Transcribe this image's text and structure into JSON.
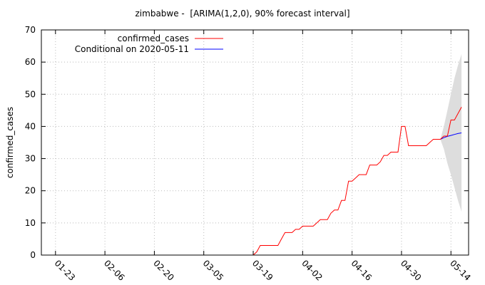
{
  "chart_data": {
    "type": "line",
    "title": "zimbabwe -  [ARIMA(1,2,0), 90% forecast interval]",
    "xlabel": "",
    "ylabel": "confirmed_cases",
    "xlim": [
      "2020-01-19",
      "2020-05-19"
    ],
    "ylim": [
      0,
      70
    ],
    "yticks": [
      0,
      10,
      20,
      30,
      40,
      50,
      60,
      70
    ],
    "xticks": [
      "01-23",
      "02-06",
      "02-20",
      "03-05",
      "03-19",
      "04-02",
      "04-16",
      "04-30",
      "05-14"
    ],
    "xtick_dates": [
      "2020-01-23",
      "2020-02-06",
      "2020-02-20",
      "2020-03-05",
      "2020-03-19",
      "2020-04-02",
      "2020-04-16",
      "2020-04-30",
      "2020-05-14"
    ],
    "grid": true,
    "legend_position": "top-left",
    "series": [
      {
        "name": "confirmed_cases",
        "color": "#ff0000",
        "points": [
          [
            "2020-03-19",
            0
          ],
          [
            "2020-03-20",
            1
          ],
          [
            "2020-03-21",
            3
          ],
          [
            "2020-03-22",
            3
          ],
          [
            "2020-03-23",
            3
          ],
          [
            "2020-03-24",
            3
          ],
          [
            "2020-03-25",
            3
          ],
          [
            "2020-03-26",
            3
          ],
          [
            "2020-03-27",
            5
          ],
          [
            "2020-03-28",
            7
          ],
          [
            "2020-03-29",
            7
          ],
          [
            "2020-03-30",
            7
          ],
          [
            "2020-03-31",
            8
          ],
          [
            "2020-04-01",
            8
          ],
          [
            "2020-04-02",
            9
          ],
          [
            "2020-04-03",
            9
          ],
          [
            "2020-04-04",
            9
          ],
          [
            "2020-04-05",
            9
          ],
          [
            "2020-04-06",
            10
          ],
          [
            "2020-04-07",
            11
          ],
          [
            "2020-04-08",
            11
          ],
          [
            "2020-04-09",
            11
          ],
          [
            "2020-04-10",
            13
          ],
          [
            "2020-04-11",
            14
          ],
          [
            "2020-04-12",
            14
          ],
          [
            "2020-04-13",
            17
          ],
          [
            "2020-04-14",
            17
          ],
          [
            "2020-04-15",
            23
          ],
          [
            "2020-04-16",
            23
          ],
          [
            "2020-04-17",
            24
          ],
          [
            "2020-04-18",
            25
          ],
          [
            "2020-04-19",
            25
          ],
          [
            "2020-04-20",
            25
          ],
          [
            "2020-04-21",
            28
          ],
          [
            "2020-04-22",
            28
          ],
          [
            "2020-04-23",
            28
          ],
          [
            "2020-04-24",
            29
          ],
          [
            "2020-04-25",
            31
          ],
          [
            "2020-04-26",
            31
          ],
          [
            "2020-04-27",
            32
          ],
          [
            "2020-04-28",
            32
          ],
          [
            "2020-04-29",
            32
          ],
          [
            "2020-04-30",
            40
          ],
          [
            "2020-05-01",
            40
          ],
          [
            "2020-05-02",
            34
          ],
          [
            "2020-05-03",
            34
          ],
          [
            "2020-05-04",
            34
          ],
          [
            "2020-05-05",
            34
          ],
          [
            "2020-05-06",
            34
          ],
          [
            "2020-05-07",
            34
          ],
          [
            "2020-05-08",
            35
          ],
          [
            "2020-05-09",
            36
          ],
          [
            "2020-05-10",
            36
          ],
          [
            "2020-05-11",
            36
          ],
          [
            "2020-05-12",
            37
          ],
          [
            "2020-05-13",
            37
          ],
          [
            "2020-05-14",
            42
          ],
          [
            "2020-05-15",
            42
          ],
          [
            "2020-05-16",
            44
          ],
          [
            "2020-05-17",
            46
          ]
        ]
      },
      {
        "name": "Conditional on 2020-05-11",
        "color": "#0000ff",
        "points": [
          [
            "2020-05-11",
            36
          ],
          [
            "2020-05-12",
            36.5
          ],
          [
            "2020-05-13",
            36.9
          ],
          [
            "2020-05-14",
            37.2
          ],
          [
            "2020-05-15",
            37.5
          ],
          [
            "2020-05-16",
            37.8
          ],
          [
            "2020-05-17",
            38
          ]
        ]
      }
    ],
    "forecast_interval": {
      "color": "#dddddd",
      "points": [
        [
          "2020-05-11",
          36,
          36
        ],
        [
          "2020-05-12",
          33,
          40
        ],
        [
          "2020-05-13",
          28.5,
          45
        ],
        [
          "2020-05-14",
          25,
          50
        ],
        [
          "2020-05-15",
          21,
          55
        ],
        [
          "2020-05-16",
          17,
          59
        ],
        [
          "2020-05-17",
          13.5,
          62.5
        ]
      ]
    }
  }
}
